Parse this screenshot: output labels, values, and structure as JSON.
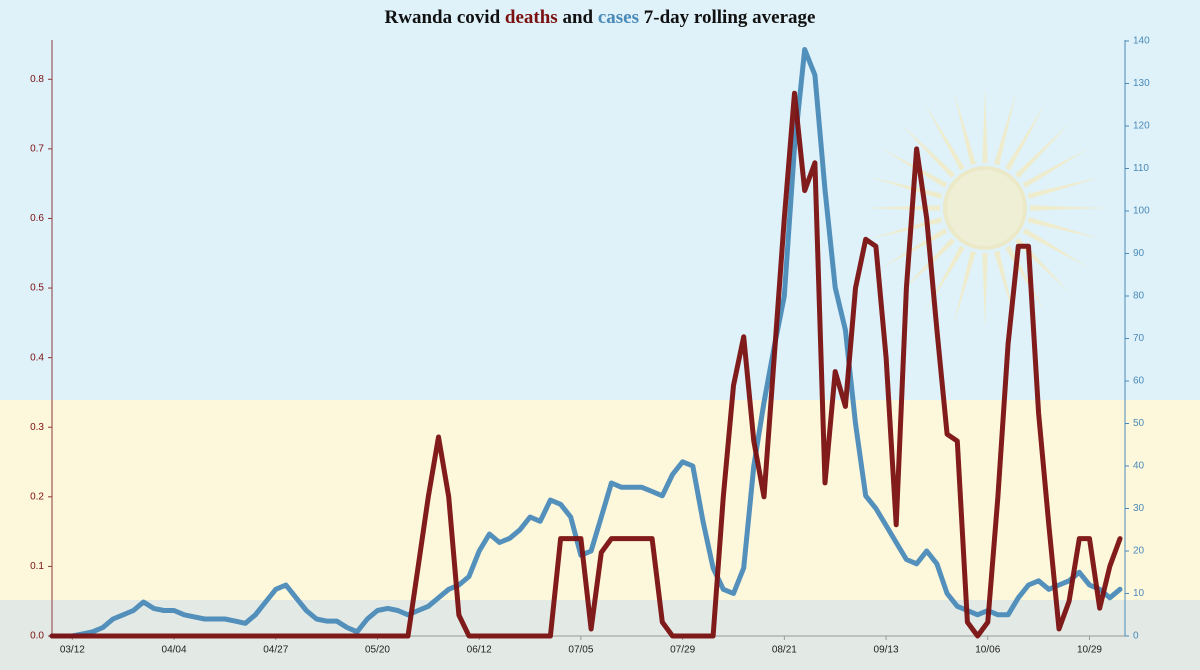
{
  "chart_data": {
    "type": "line",
    "title": [
      "Rwanda covid",
      "and",
      "7-day rolling average"
    ],
    "categories": [
      null,
      null,
      "03/12",
      null,
      null,
      null,
      null,
      null,
      null,
      null,
      null,
      null,
      "04/04",
      null,
      null,
      null,
      null,
      null,
      null,
      null,
      null,
      null,
      "04/27",
      null,
      null,
      null,
      null,
      null,
      null,
      null,
      null,
      null,
      "05/20",
      null,
      null,
      null,
      null,
      null,
      null,
      null,
      null,
      null,
      "06/12",
      null,
      null,
      null,
      null,
      null,
      null,
      null,
      null,
      null,
      "07/05",
      null,
      null,
      null,
      null,
      null,
      null,
      null,
      null,
      null,
      "07/29",
      null,
      null,
      null,
      null,
      null,
      null,
      null,
      null,
      null,
      "08/21",
      null,
      null,
      null,
      null,
      null,
      null,
      null,
      null,
      null,
      "09/13",
      null,
      null,
      null,
      null,
      null,
      null,
      null,
      null,
      null,
      "10/06",
      null,
      null,
      null,
      null,
      null,
      null,
      null,
      null,
      null,
      "10/29",
      null,
      null,
      null
    ],
    "series": [
      {
        "name": "deaths",
        "color": "#7a1010",
        "axis": "y",
        "values": [
          0,
          0,
          0,
          0,
          0,
          0,
          0,
          0,
          0,
          0,
          0,
          0,
          0,
          0,
          0,
          0,
          0,
          0,
          0,
          0,
          0,
          0,
          0,
          0,
          0,
          0,
          0,
          0,
          0,
          0,
          0,
          0,
          0,
          0,
          0,
          0,
          0.1,
          0.2,
          0.286,
          0.2,
          0.03,
          0,
          0,
          0,
          0,
          0,
          0,
          0,
          0,
          0,
          0.14,
          0.14,
          0.14,
          0.01,
          0.12,
          0.14,
          0.14,
          0.14,
          0.14,
          0.14,
          0.02,
          0,
          0,
          0,
          0,
          0,
          0.2,
          0.36,
          0.43,
          0.28,
          0.2,
          0.4,
          0.6,
          0.78,
          0.64,
          0.68,
          0.22,
          0.38,
          0.33,
          0.5,
          0.57,
          0.56,
          0.4,
          0.16,
          0.5,
          0.7,
          0.6,
          0.44,
          0.29,
          0.28,
          0.02,
          0,
          0.02,
          0.2,
          0.42,
          0.56,
          0.56,
          0.32,
          0.16,
          0.01,
          0.05,
          0.14,
          0.14,
          0.04,
          0.1,
          0.14
        ]
      },
      {
        "name": "cases",
        "color": "#4a8ab8",
        "axis": "y2",
        "values": [
          0,
          0,
          0,
          0.5,
          1,
          2,
          4,
          5,
          6,
          8,
          6.5,
          6,
          6,
          5,
          4.5,
          4,
          4,
          4,
          3.5,
          3,
          5,
          8,
          11,
          12,
          9,
          6,
          4,
          3.5,
          3.5,
          2,
          1,
          4,
          6,
          6.5,
          6,
          5,
          6,
          7,
          9,
          11,
          12,
          14,
          20,
          24,
          22,
          23,
          25,
          28,
          27,
          32,
          31,
          28,
          19,
          20,
          28,
          36,
          35,
          35,
          35,
          34,
          33,
          38,
          41,
          40,
          27,
          16,
          11,
          10,
          16,
          40,
          55,
          68,
          80,
          115,
          138,
          132,
          105,
          82,
          72,
          50,
          33,
          30,
          26,
          22,
          18,
          17,
          20,
          17,
          10,
          7,
          6,
          5,
          6,
          5,
          5,
          9,
          12,
          13,
          11,
          12,
          13,
          15,
          12,
          11,
          9,
          11
        ]
      }
    ],
    "ylim": [
      0,
      0.855
    ],
    "yticks": [
      {
        "value": 0,
        "label": "0.0"
      },
      0.1,
      0.2,
      0.3,
      0.4,
      0.5,
      0.6,
      0.7,
      0.8
    ],
    "y2lim": [
      0,
      140
    ],
    "y2ticks": [
      0,
      10,
      20,
      30,
      40,
      50,
      60,
      70,
      80,
      90,
      100,
      110,
      120,
      130,
      140
    ]
  }
}
